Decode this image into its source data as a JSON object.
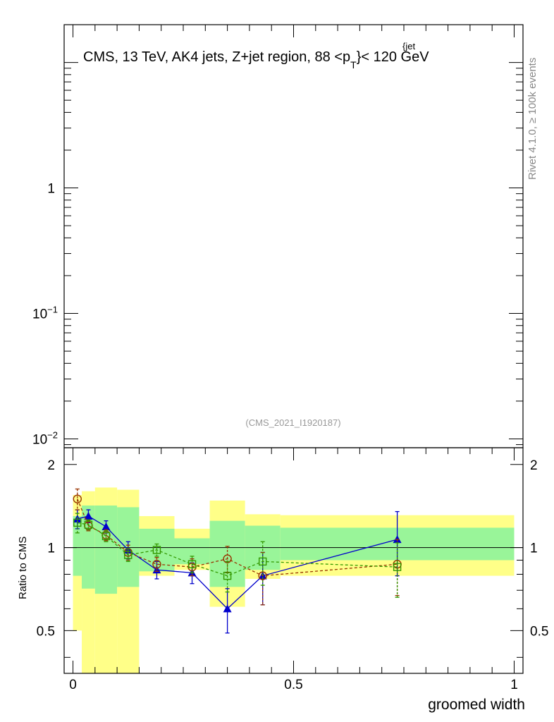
{
  "chart_data": {
    "type": "line",
    "title": "CMS, 13 TeV, AK4 jets, Z+jet region, 88 <p",
    "title_sup": "{jet",
    "title_sub": "T",
    "title_after": "}< 120 GeV",
    "side_label": "Rivet 4.1.0, ≥ 100k events",
    "watermark": "(CMS_2021_I1920187)",
    "main_yticks": [
      {
        "value": 1,
        "label": "1"
      },
      {
        "value": 0.1,
        "label": "10",
        "exp": "−1"
      },
      {
        "value": 0.01,
        "label": "10",
        "exp": "−2"
      }
    ],
    "main_ylim": [
      0.0085,
      20
    ],
    "ratio_ylabel": "Ratio to CMS",
    "ratio_ylim": [
      0.35,
      2.3
    ],
    "ratio_yticks": [
      {
        "value": 2,
        "label": "2"
      },
      {
        "value": 1,
        "label": "1"
      },
      {
        "value": 0.5,
        "label": "0.5"
      }
    ],
    "xlabel": "groomed width",
    "xlim": [
      -0.02,
      1.02
    ],
    "xticks": [
      {
        "value": 0,
        "label": "0"
      },
      {
        "value": 0.5,
        "label": "0.5"
      },
      {
        "value": 1,
        "label": "1"
      }
    ],
    "reference_line": 1,
    "bins": [
      {
        "lo": 0.0,
        "hi": 0.02,
        "band_outer": [
          0.5,
          1.55
        ],
        "band_inner": [
          0.79,
          1.3
        ]
      },
      {
        "lo": 0.02,
        "hi": 0.05,
        "band_outer": [
          0.3,
          1.6
        ],
        "band_inner": [
          0.71,
          1.42
        ]
      },
      {
        "lo": 0.05,
        "hi": 0.1,
        "band_outer": [
          0.3,
          1.65
        ],
        "band_inner": [
          0.68,
          1.42
        ]
      },
      {
        "lo": 0.1,
        "hi": 0.15,
        "band_outer": [
          0.3,
          1.62
        ],
        "band_inner": [
          0.72,
          1.4
        ]
      },
      {
        "lo": 0.15,
        "hi": 0.23,
        "band_outer": [
          0.79,
          1.3
        ],
        "band_inner": [
          0.82,
          1.17
        ]
      },
      {
        "lo": 0.23,
        "hi": 0.31,
        "band_outer": [
          0.83,
          1.17
        ],
        "band_inner": [
          0.87,
          1.08
        ]
      },
      {
        "lo": 0.31,
        "hi": 0.39,
        "band_outer": [
          0.61,
          1.48
        ],
        "band_inner": [
          0.72,
          1.25
        ]
      },
      {
        "lo": 0.39,
        "hi": 0.47,
        "band_outer": [
          0.77,
          1.32
        ],
        "band_inner": [
          0.83,
          1.2
        ]
      },
      {
        "lo": 0.47,
        "hi": 1.0,
        "band_outer": [
          0.79,
          1.31
        ],
        "band_inner": [
          0.9,
          1.18
        ]
      }
    ],
    "series": [
      {
        "marker": "triangle",
        "color": "#0000cc",
        "dash": false,
        "x": [
          0.01,
          0.035,
          0.075,
          0.125,
          0.19,
          0.27,
          0.35,
          0.43,
          0.735
        ],
        "y": [
          1.27,
          1.3,
          1.19,
          0.98,
          0.83,
          0.81,
          0.6,
          0.79,
          1.07
        ],
        "err": [
          0.1,
          0.07,
          0.06,
          0.07,
          0.06,
          0.07,
          0.11,
          0.17,
          0.28
        ]
      },
      {
        "marker": "circle",
        "color": "#993300",
        "dash": true,
        "x": [
          0.01,
          0.035,
          0.075,
          0.125,
          0.19,
          0.27,
          0.35,
          0.43,
          0.735
        ],
        "y": [
          1.5,
          1.2,
          1.11,
          0.96,
          0.87,
          0.85,
          0.91,
          0.79,
          0.87
        ],
        "err": [
          0.13,
          0.05,
          0.05,
          0.06,
          0.05,
          0.06,
          0.1,
          0.17,
          0.2
        ]
      },
      {
        "marker": "square",
        "color": "#339900",
        "dash": true,
        "x": [
          0.01,
          0.035,
          0.075,
          0.125,
          0.19,
          0.27,
          0.35,
          0.43,
          0.735
        ],
        "y": [
          1.23,
          1.21,
          1.1,
          0.94,
          0.98,
          0.87,
          0.79,
          0.89,
          0.85
        ],
        "err": [
          0.1,
          0.05,
          0.05,
          0.05,
          0.05,
          0.06,
          0.1,
          0.16,
          0.19
        ]
      }
    ]
  }
}
